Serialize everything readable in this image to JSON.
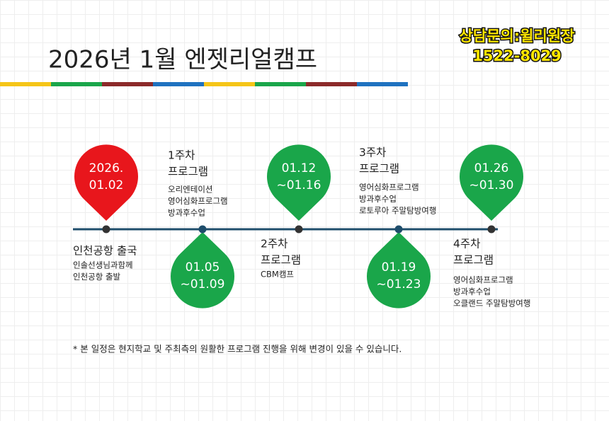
{
  "title": "2026년 1월 엔젯리얼캠프",
  "contact": [
    "상담문의:윌리원장",
    "1522-8029"
  ],
  "milestones": [
    {
      "pin": {
        "lines": [
          "2026.",
          "01.02"
        ],
        "color": "#e8161c"
      },
      "heading": [
        "인천공항 출국"
      ],
      "details": [
        "인솔선생님과함께",
        "인천공항 출발"
      ]
    },
    {
      "pin": {
        "lines": [
          "01.05",
          "~01.09"
        ],
        "color": "#1aa64a"
      },
      "heading": [
        "1주차",
        "프로그램"
      ],
      "details": [
        "오리엔테이션",
        "영어심화프로그램",
        "방과후수업"
      ]
    },
    {
      "pin": {
        "lines": [
          "01.12",
          "~01.16"
        ],
        "color": "#1aa64a"
      },
      "heading": [
        "2주차",
        "프로그램"
      ],
      "details": [
        "CBM캠프"
      ]
    },
    {
      "pin": {
        "lines": [
          "01.19",
          "~01.23"
        ],
        "color": "#1aa64a"
      },
      "heading": [
        "3주차",
        "프로그램"
      ],
      "details": [
        "영어심화프로그램",
        "방과후수업",
        "로토루아 주말탐방여행"
      ]
    },
    {
      "pin": {
        "lines": [
          "01.26",
          "~01.30"
        ],
        "color": "#1aa64a"
      },
      "heading": [
        "4주차",
        "프로그램"
      ],
      "details": [
        "영어심화프로그램",
        "방과후수업",
        "오클랜드 주말탐방여행"
      ]
    }
  ],
  "footnote": "* 본 일정은 현지학교 및 주최측의 원활한 프로그램 진행을 위해 변경이 있을 수 있습니다."
}
